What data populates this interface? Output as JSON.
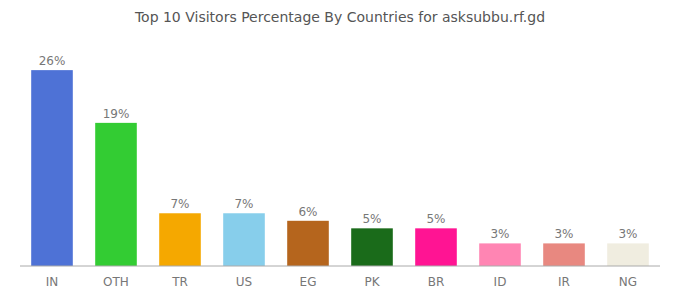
{
  "chart_data": {
    "type": "bar",
    "title": "Top 10 Visitors Percentage By Countries for asksubbu.rf.gd",
    "categories": [
      "IN",
      "OTH",
      "TR",
      "US",
      "EG",
      "PK",
      "BR",
      "ID",
      "IR",
      "NG"
    ],
    "values": [
      26,
      19,
      7,
      7,
      6,
      5,
      5,
      3,
      3,
      3
    ],
    "value_labels": [
      "26%",
      "19%",
      "7%",
      "7%",
      "6%",
      "5%",
      "5%",
      "3%",
      "3%",
      "3%"
    ],
    "colors": [
      "#4e72d6",
      "#33cc33",
      "#f5a800",
      "#87ceeb",
      "#b5651d",
      "#1a6b1a",
      "#ff1493",
      "#ff85b3",
      "#e88880",
      "#f0ede0"
    ],
    "ylim": [
      0,
      30
    ],
    "data_labels": true,
    "tick_labels": "x",
    "grid": false
  }
}
